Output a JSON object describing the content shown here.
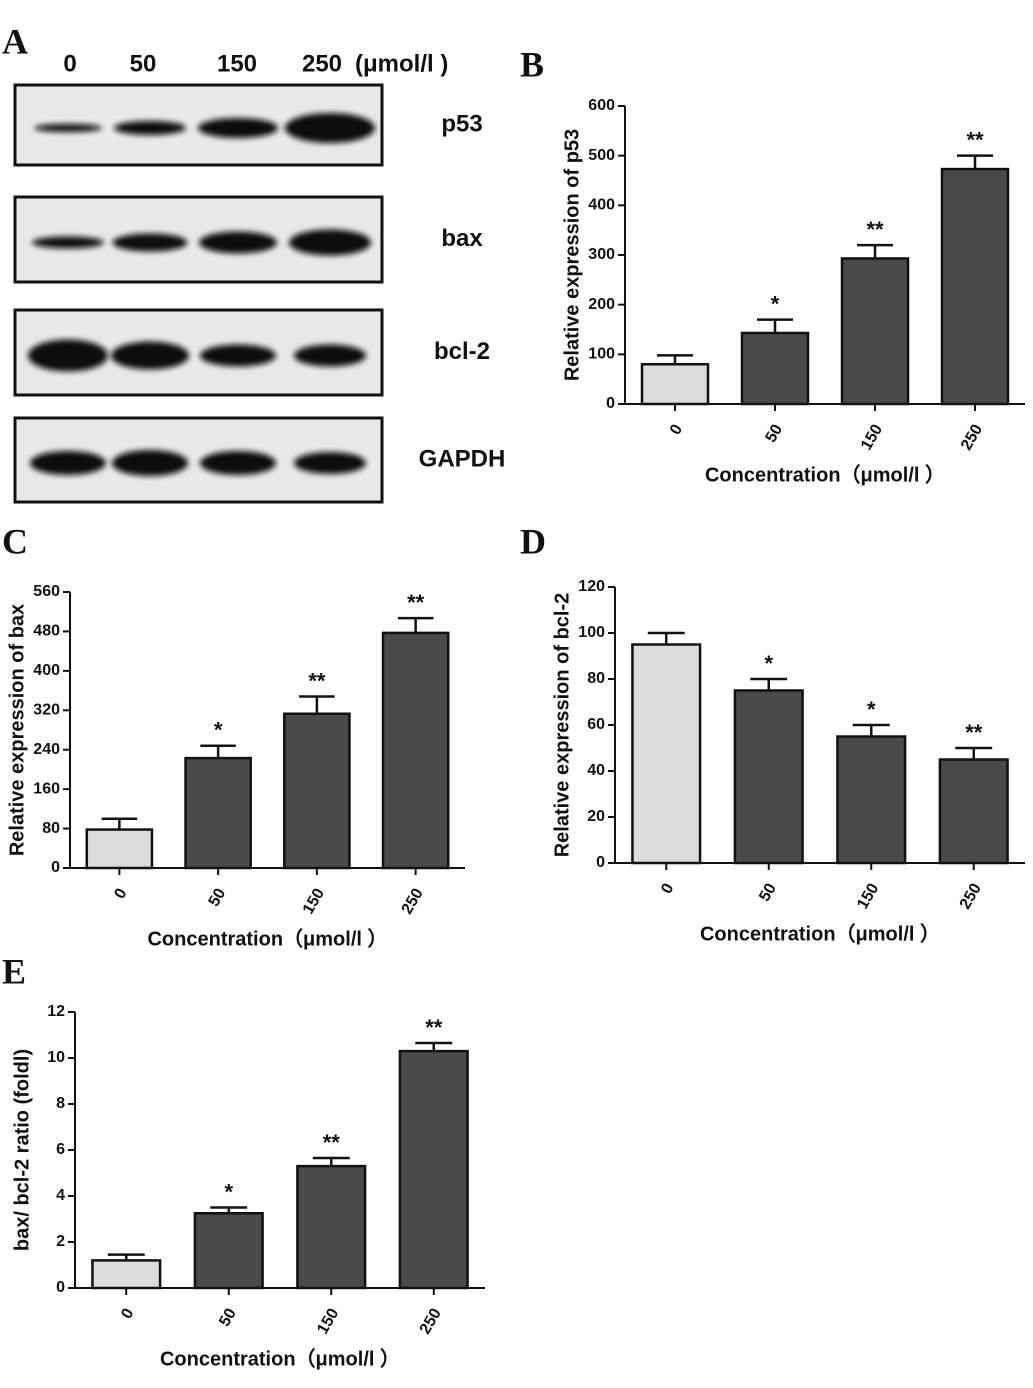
{
  "blot": {
    "panel_label": "A",
    "lanes": [
      "0",
      "50",
      "150",
      "250"
    ],
    "unit": "(μmol/l )",
    "rows": [
      "p53",
      "bax",
      "bcl-2",
      "GAPDH"
    ]
  },
  "chart_data": [
    {
      "type": "bar",
      "panel_label": "B",
      "ylabel": "Relative expression of p53",
      "xlabel": "Concentration（μmol/l ）",
      "categories": [
        "0",
        "50",
        "150",
        "250"
      ],
      "values": [
        80,
        143,
        293,
        473
      ],
      "errors": [
        18,
        27,
        27,
        27
      ],
      "annotations": [
        null,
        "*",
        "**",
        "**"
      ],
      "colors": [
        "#dcdcdc",
        "#4a4a4a",
        "#4a4a4a",
        "#4a4a4a"
      ],
      "ylim": [
        0,
        600
      ],
      "yticks": [
        0,
        100,
        200,
        300,
        400,
        500,
        600
      ]
    },
    {
      "type": "bar",
      "panel_label": "C",
      "ylabel": "Relative expression of bax",
      "xlabel": "Concentration（μmol/l ）",
      "categories": [
        "0",
        "50",
        "150",
        "250"
      ],
      "values": [
        78,
        223,
        313,
        477
      ],
      "errors": [
        22,
        25,
        35,
        30
      ],
      "annotations": [
        null,
        "*",
        "**",
        "**"
      ],
      "colors": [
        "#dcdcdc",
        "#4a4a4a",
        "#4a4a4a",
        "#4a4a4a"
      ],
      "ylim": [
        0,
        560
      ],
      "yticks": [
        0,
        80,
        160,
        240,
        320,
        400,
        480,
        560
      ]
    },
    {
      "type": "bar",
      "panel_label": "D",
      "ylabel": "Relative expression of bcl-2",
      "xlabel": "Concentration（μmol/l ）",
      "categories": [
        "0",
        "50",
        "150",
        "250"
      ],
      "values": [
        95,
        75,
        55,
        45
      ],
      "errors": [
        5,
        5,
        5,
        5
      ],
      "annotations": [
        null,
        "*",
        "*",
        "**"
      ],
      "colors": [
        "#dcdcdc",
        "#4a4a4a",
        "#4a4a4a",
        "#4a4a4a"
      ],
      "ylim": [
        0,
        120
      ],
      "yticks": [
        0,
        20,
        40,
        60,
        80,
        100,
        120
      ]
    },
    {
      "type": "bar",
      "panel_label": "E",
      "ylabel": "bax/ bcl-2 ratio (foldl)",
      "xlabel": "Concentration（μmol/l ）",
      "categories": [
        "0",
        "50",
        "150",
        "250"
      ],
      "values": [
        1.2,
        3.25,
        5.3,
        10.3
      ],
      "errors": [
        0.25,
        0.25,
        0.35,
        0.35
      ],
      "annotations": [
        null,
        "*",
        "**",
        "**"
      ],
      "colors": [
        "#dcdcdc",
        "#4a4a4a",
        "#4a4a4a",
        "#4a4a4a"
      ],
      "ylim": [
        0,
        12
      ],
      "yticks": [
        0,
        2,
        4,
        6,
        8,
        10,
        12
      ]
    }
  ]
}
